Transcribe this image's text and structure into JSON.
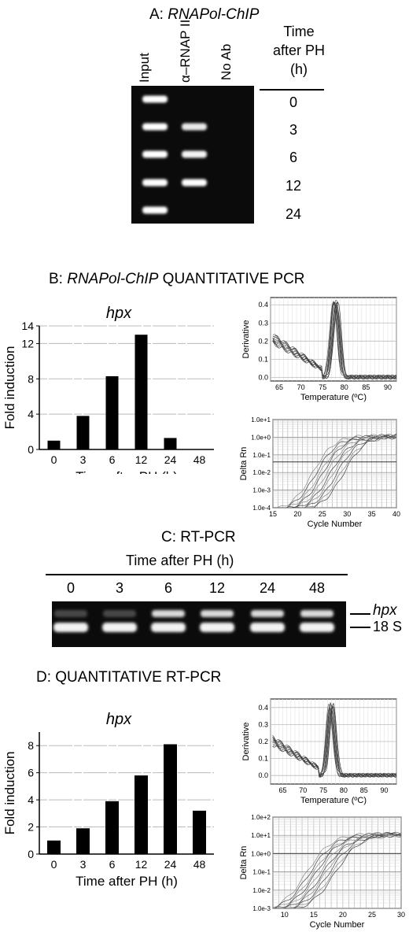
{
  "panelA": {
    "title_prefix": "A: ",
    "title_italic": "RNAPol-ChIP",
    "lanes": [
      "Input",
      "α–RNAP II",
      "No Ab"
    ],
    "time_header": [
      "Time",
      "after PH",
      "(h)"
    ],
    "times": [
      "0",
      "3",
      "6",
      "12",
      "24"
    ],
    "bands": {
      "input": [
        1,
        1,
        1,
        1,
        1
      ],
      "rnap": [
        0,
        0.8,
        0.9,
        1,
        0
      ],
      "noab": [
        0,
        0,
        0,
        0,
        0
      ]
    }
  },
  "panelB": {
    "title_prefix": "B: ",
    "title_italic": "RNAPol-ChIP",
    "title_suffix": " QUANTITATIVE PCR"
  },
  "panelC": {
    "title": "C: RT-PCR",
    "subtitle": "Time after PH (h)",
    "times": [
      "0",
      "3",
      "6",
      "12",
      "24",
      "48"
    ],
    "band_labels": [
      "hpx",
      "18 S"
    ]
  },
  "panelD": {
    "title": "D: QUANTITATIVE RT-PCR"
  },
  "chart_data": [
    {
      "id": "B-bar",
      "type": "bar",
      "title": "hpx",
      "xlabel": "Time after PH (h)",
      "ylabel": "Fold induction",
      "categories": [
        "0",
        "3",
        "6",
        "12",
        "24",
        "48"
      ],
      "values": [
        1,
        3.8,
        8.3,
        13.0,
        1.3,
        0
      ],
      "ylim": [
        0,
        14
      ],
      "yticks": [
        0,
        4,
        8,
        12,
        14
      ],
      "grid": true
    },
    {
      "id": "B-melt",
      "type": "line",
      "xlabel": "Temperature (ºC)",
      "ylabel": "Derivative",
      "xlim": [
        63,
        92
      ],
      "ylim": [
        -0.02,
        0.44
      ],
      "xticks": [
        65,
        70,
        75,
        80,
        85,
        90
      ],
      "yticks": [
        0.0,
        0.1,
        0.2,
        0.3,
        0.4
      ],
      "peak_temperature": 78,
      "peak_value": 0.42,
      "grid": true
    },
    {
      "id": "B-amp",
      "type": "line",
      "xlabel": "Cycle Number",
      "ylabel": "Delta Rn",
      "xlim": [
        15,
        40
      ],
      "ylim_log10": [
        -4,
        1
      ],
      "xticks": [
        15,
        20,
        25,
        30,
        35,
        40
      ],
      "yticks": [
        "1.0e+1",
        "1.0e+0",
        "1.0e-1",
        "1.0e-2",
        "1.0e-3",
        "1.0e-4"
      ],
      "threshold": 0.04,
      "grid": true
    },
    {
      "id": "D-bar",
      "type": "bar",
      "title": "hpx",
      "xlabel": "Time after PH (h)",
      "ylabel": "Fold induction",
      "categories": [
        "0",
        "3",
        "6",
        "12",
        "24",
        "48"
      ],
      "values": [
        1.0,
        1.9,
        3.9,
        5.8,
        8.1,
        3.2
      ],
      "ylim": [
        0,
        9
      ],
      "yticks": [
        0,
        2,
        4,
        6,
        8
      ],
      "grid": true
    },
    {
      "id": "D-melt",
      "type": "line",
      "xlabel": "Temperature (ºC)",
      "ylabel": "Derivative",
      "xlim": [
        62,
        93
      ],
      "ylim": [
        -0.05,
        0.45
      ],
      "xticks": [
        65,
        70,
        75,
        80,
        85,
        90
      ],
      "yticks": [
        0.0,
        0.1,
        0.2,
        0.3,
        0.4
      ],
      "peak_temperature": 77,
      "peak_value": 0.42,
      "grid": true
    },
    {
      "id": "D-amp",
      "type": "line",
      "xlabel": "Cycle Number",
      "ylabel": "Delta Rn",
      "xlim": [
        8,
        30
      ],
      "ylim_log10": [
        -3,
        2
      ],
      "xticks": [
        10,
        15,
        20,
        25,
        30
      ],
      "yticks": [
        "1.0e+2",
        "1.0e+1",
        "1.0e+0",
        "1.0e-1",
        "1.0e-2",
        "1.0e-3"
      ],
      "threshold": 1,
      "grid": true
    }
  ]
}
